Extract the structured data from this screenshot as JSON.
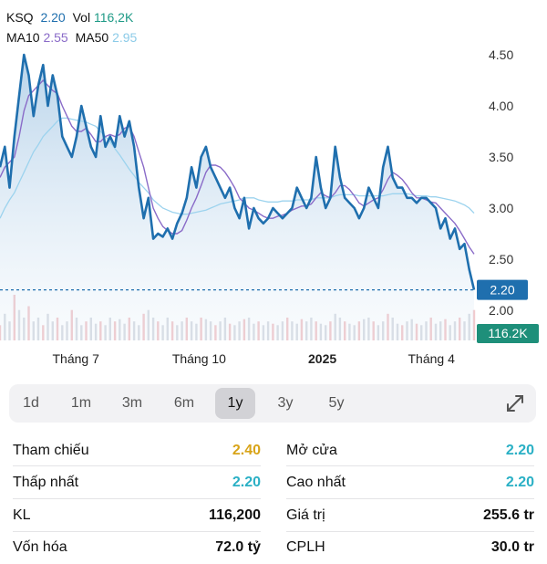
{
  "header": {
    "symbol": "KSQ",
    "price": "2.20",
    "vol_label": "Vol",
    "vol_value": "116,2K",
    "ma10_label": "MA10",
    "ma10_value": "2.55",
    "ma50_label": "MA50",
    "ma50_value": "2.95"
  },
  "colors": {
    "price_line": "#1f6fae",
    "ma10": "#8a6bc8",
    "ma50": "#9cd3ee",
    "price_tag": "#1f6fae",
    "volume_tag": "#1e8f7a",
    "reference": "#d8a419",
    "teal_value": "#2ab0c5"
  },
  "chart_data": {
    "type": "line",
    "title": "",
    "xlabel": "",
    "ylabel": "",
    "ylim": [
      1.85,
      4.65
    ],
    "yticks": [
      "4.50",
      "4.00",
      "3.50",
      "3.00",
      "2.50",
      "2.00"
    ],
    "xticks": [
      {
        "label": "Tháng 7",
        "bold": false,
        "at": 0.16
      },
      {
        "label": "Tháng 10",
        "bold": false,
        "at": 0.42
      },
      {
        "label": "2025",
        "bold": true,
        "at": 0.68
      },
      {
        "label": "Tháng 4",
        "bold": false,
        "at": 0.91
      }
    ],
    "current_price_tag": "2.20",
    "current_price_value": 2.2,
    "volume_tag": "116.2K",
    "grid": false,
    "series": [
      {
        "name": "KSQ",
        "values": [
          3.4,
          3.6,
          3.2,
          3.7,
          4.1,
          4.5,
          4.3,
          3.9,
          4.2,
          4.4,
          4.0,
          4.3,
          4.1,
          3.7,
          3.6,
          3.5,
          3.7,
          4.0,
          3.8,
          3.6,
          3.5,
          3.9,
          3.6,
          3.7,
          3.6,
          3.9,
          3.7,
          3.85,
          3.6,
          3.2,
          2.9,
          3.1,
          2.7,
          2.75,
          2.72,
          2.8,
          2.7,
          2.85,
          2.95,
          3.1,
          3.4,
          3.2,
          3.5,
          3.6,
          3.4,
          3.3,
          3.2,
          3.1,
          3.2,
          3.0,
          2.9,
          3.1,
          2.8,
          3.0,
          2.9,
          2.85,
          2.9,
          3.0,
          2.95,
          2.9,
          2.95,
          3.0,
          3.2,
          3.1,
          3.0,
          3.1,
          3.5,
          3.2,
          3.0,
          3.1,
          3.6,
          3.3,
          3.1,
          3.05,
          3.0,
          2.9,
          3.0,
          3.2,
          3.1,
          3.0,
          3.4,
          3.6,
          3.3,
          3.2,
          3.2,
          3.1,
          3.1,
          3.05,
          3.1,
          3.1,
          3.05,
          3.0,
          2.8,
          2.9,
          2.7,
          2.8,
          2.6,
          2.65,
          2.4,
          2.2
        ]
      },
      {
        "name": "MA10",
        "values": [
          3.3,
          3.4,
          3.45,
          3.5,
          3.7,
          3.95,
          4.1,
          4.15,
          4.2,
          4.25,
          4.2,
          4.15,
          4.12,
          4.0,
          3.9,
          3.8,
          3.75,
          3.75,
          3.78,
          3.72,
          3.65,
          3.65,
          3.7,
          3.72,
          3.7,
          3.72,
          3.78,
          3.8,
          3.7,
          3.55,
          3.4,
          3.2,
          3.0,
          2.9,
          2.82,
          2.78,
          2.75,
          2.75,
          2.78,
          2.88,
          3.0,
          3.1,
          3.22,
          3.35,
          3.42,
          3.42,
          3.4,
          3.35,
          3.28,
          3.2,
          3.1,
          3.05,
          3.0,
          2.98,
          2.95,
          2.92,
          2.9,
          2.9,
          2.92,
          2.93,
          2.95,
          2.98,
          3.0,
          3.02,
          3.02,
          3.04,
          3.1,
          3.15,
          3.12,
          3.1,
          3.15,
          3.22,
          3.22,
          3.18,
          3.12,
          3.05,
          3.02,
          3.05,
          3.08,
          3.1,
          3.18,
          3.28,
          3.35,
          3.32,
          3.28,
          3.22,
          3.15,
          3.1,
          3.1,
          3.08,
          3.06,
          3.05,
          3.0,
          2.95,
          2.9,
          2.85,
          2.78,
          2.7,
          2.62,
          2.55
        ]
      },
      {
        "name": "MA50",
        "values": [
          2.9,
          3.0,
          3.08,
          3.15,
          3.25,
          3.35,
          3.45,
          3.55,
          3.62,
          3.7,
          3.75,
          3.8,
          3.85,
          3.88,
          3.88,
          3.87,
          3.86,
          3.85,
          3.84,
          3.82,
          3.8,
          3.75,
          3.7,
          3.65,
          3.58,
          3.52,
          3.45,
          3.38,
          3.32,
          3.25,
          3.2,
          3.15,
          3.08,
          3.04,
          3.0,
          2.98,
          2.96,
          2.95,
          2.94,
          2.94,
          2.95,
          2.96,
          2.97,
          2.98,
          3.0,
          3.02,
          3.04,
          3.05,
          3.06,
          3.07,
          3.08,
          3.1,
          3.1,
          3.1,
          3.08,
          3.07,
          3.06,
          3.06,
          3.06,
          3.07,
          3.07,
          3.07,
          3.08,
          3.08,
          3.08,
          3.08,
          3.1,
          3.1,
          3.1,
          3.1,
          3.12,
          3.13,
          3.13,
          3.13,
          3.13,
          3.12,
          3.12,
          3.12,
          3.12,
          3.12,
          3.12,
          3.13,
          3.14,
          3.14,
          3.14,
          3.14,
          3.13,
          3.12,
          3.12,
          3.12,
          3.11,
          3.11,
          3.1,
          3.09,
          3.08,
          3.07,
          3.05,
          3.03,
          3.0,
          2.95
        ]
      },
      {
        "name": "Volume",
        "values": [
          20,
          35,
          25,
          60,
          40,
          30,
          45,
          25,
          30,
          20,
          35,
          25,
          30,
          20,
          25,
          40,
          30,
          20,
          25,
          30,
          22,
          25,
          20,
          30,
          25,
          28,
          22,
          30,
          25,
          20,
          35,
          40,
          30,
          25,
          20,
          30,
          25,
          20,
          25,
          30,
          25,
          22,
          30,
          28,
          25,
          20,
          25,
          30,
          22,
          20,
          25,
          28,
          30,
          22,
          25,
          20,
          25,
          22,
          20,
          25,
          30,
          25,
          22,
          28,
          25,
          30,
          25,
          22,
          20,
          25,
          35,
          30,
          25,
          22,
          20,
          25,
          28,
          30,
          25,
          20,
          25,
          35,
          30,
          22,
          20,
          25,
          28,
          22,
          20,
          25,
          30,
          22,
          25,
          28,
          20,
          25,
          30,
          25,
          35,
          40
        ]
      }
    ]
  },
  "ranges": {
    "items": [
      "1d",
      "1m",
      "3m",
      "6m",
      "1y",
      "3y",
      "5y"
    ],
    "active": "1y"
  },
  "stats": {
    "ref_label": "Tham chiếu",
    "ref_value": "2.40",
    "open_label": "Mở cửa",
    "open_value": "2.20",
    "low_label": "Thấp nhất",
    "low_value": "2.20",
    "high_label": "Cao nhất",
    "high_value": "2.20",
    "vol_label": "KL",
    "vol_value": "116,200",
    "value_label": "Giá trị",
    "value_value": "255.6 tr",
    "cap_label": "Vốn hóa",
    "cap_value": "72.0 tỷ",
    "shares_label": "CPLH",
    "shares_value": "30.0 tr"
  }
}
